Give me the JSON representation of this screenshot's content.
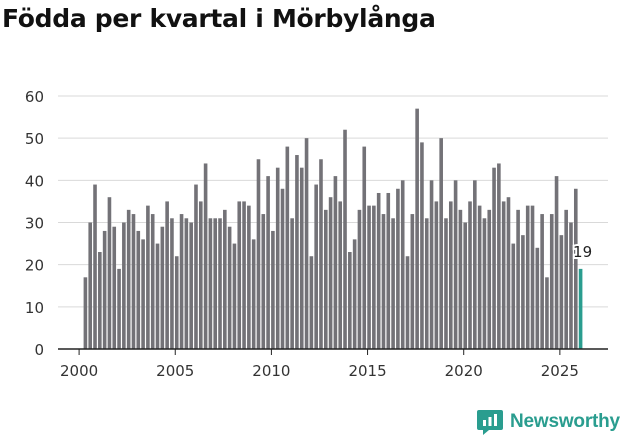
{
  "title": "Födda per kvartal i Mörbylånga",
  "brand": {
    "name": "Newsworthy",
    "color": "#2a9d8f"
  },
  "colors": {
    "bar": "#737277",
    "highlight": "#2a9d8f",
    "grid": "#d9d9d9",
    "axis": "#333333"
  },
  "chart_data": {
    "type": "bar",
    "title": "Födda per kvartal i Mörbylånga",
    "xlabel": "",
    "ylabel": "",
    "ylim": [
      0,
      60
    ],
    "yticks": [
      0,
      10,
      20,
      30,
      40,
      50,
      60
    ],
    "xlim": [
      1999.9,
      2026.2
    ],
    "xticks": [
      2000,
      2005,
      2010,
      2015,
      2020,
      2025
    ],
    "start": 2000.125,
    "step": 0.25,
    "grid": true,
    "legend": "none",
    "annotation": {
      "text": "19",
      "target": "last"
    },
    "series": [
      {
        "values": [
          17,
          30,
          39,
          23,
          28,
          36,
          29,
          19,
          30,
          33,
          32,
          28,
          26,
          34,
          32,
          25,
          29,
          35,
          31,
          22,
          32,
          31,
          30,
          39,
          35,
          44,
          31,
          31,
          31,
          33,
          29,
          25,
          35,
          35,
          34,
          26,
          45,
          32,
          41,
          28,
          43,
          38,
          48,
          31,
          46,
          43,
          50,
          22,
          39,
          45,
          33,
          36,
          41,
          35,
          52,
          23,
          26,
          33,
          48,
          34,
          34,
          37,
          32,
          37,
          31,
          38,
          40,
          22,
          32,
          57,
          49,
          31,
          40,
          35,
          50,
          31,
          35,
          40,
          33,
          30,
          35,
          40,
          34,
          31,
          33,
          43,
          44,
          35,
          36,
          25,
          33,
          27,
          34,
          34,
          24,
          32,
          17,
          32,
          41,
          27,
          33,
          30,
          38,
          19
        ]
      }
    ]
  }
}
